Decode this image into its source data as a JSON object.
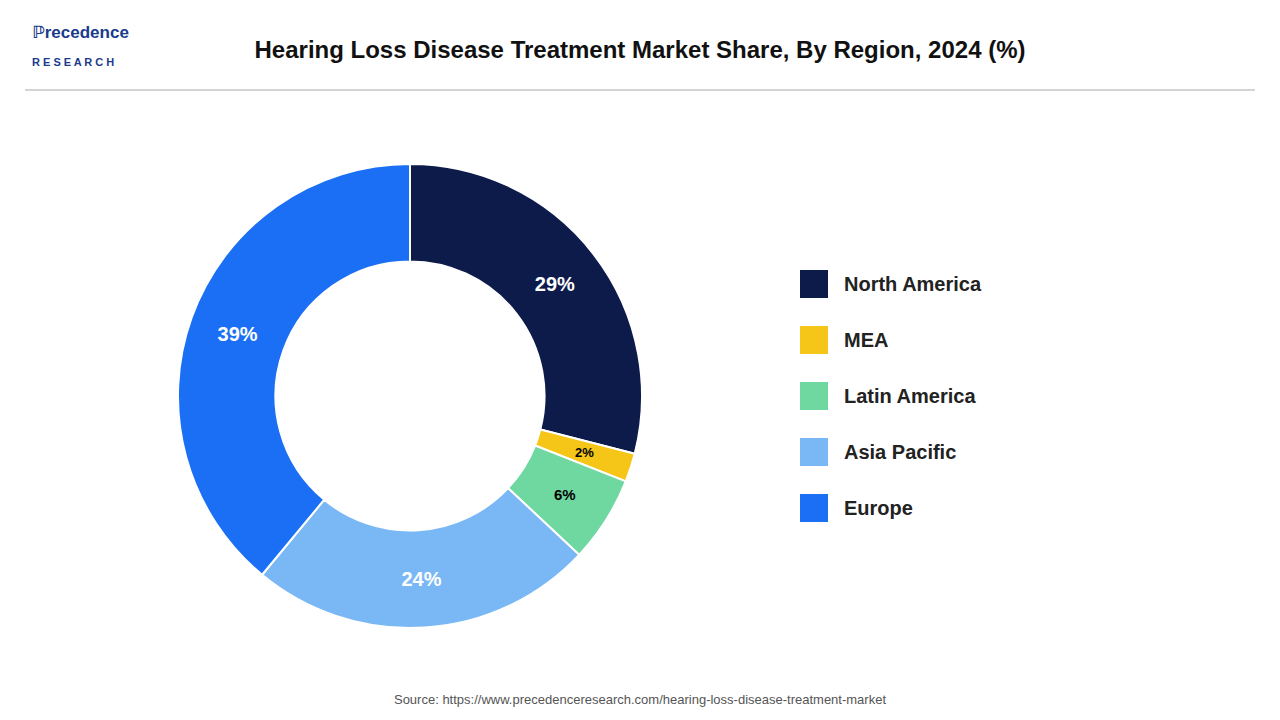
{
  "chart_data": {
    "type": "donut",
    "title": "Hearing Loss Disease Treatment Market  Share, By Region, 2024 (%)",
    "categories": [
      "North America",
      "MEA",
      "Latin America",
      "Asia Pacific",
      "Europe"
    ],
    "values": [
      29,
      2,
      6,
      24,
      39
    ],
    "value_labels": [
      "29%",
      "2%",
      "6%",
      "24%",
      "39%"
    ],
    "colors": [
      "#0d1b4b",
      "#f5c518",
      "#6fd8a0",
      "#7ab8f5",
      "#1a6ff5"
    ],
    "data_labels": true,
    "legend": "right",
    "annotations": [
      "Source: https://www.precedenceresearch.com/hearing-loss-disease-treatment-market",
      "ℙrecedence",
      "R E S E A R C H"
    ]
  }
}
